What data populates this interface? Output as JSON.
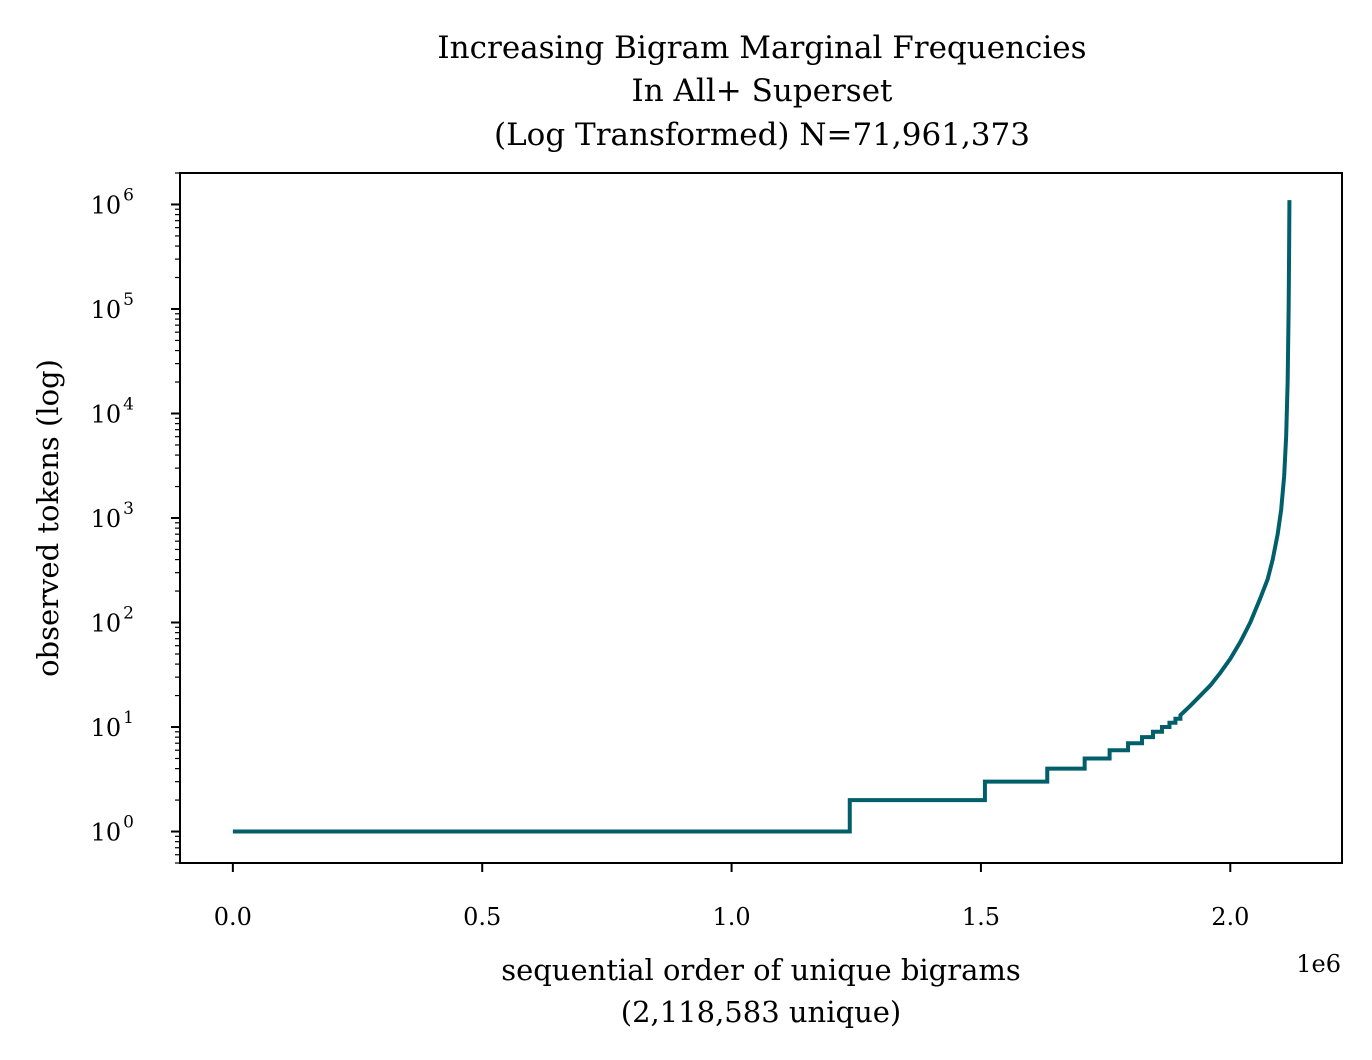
{
  "chart_data": {
    "type": "line",
    "title": [
      "Increasing Bigram Marginal Frequencies",
      "In All+ Superset",
      "(Log Transformed) N=71,961,373"
    ],
    "xlabel": [
      "sequential order of unique bigrams",
      "(2,118,583 unique)"
    ],
    "ylabel": "observed tokens (log)",
    "x_offset_label": "1e6",
    "x_scale": "linear",
    "y_scale": "log",
    "xlim": [
      -106000,
      2224000
    ],
    "ylim": [
      0.5,
      2000000
    ],
    "x_ticks": [
      {
        "value": 0,
        "label": "0.0"
      },
      {
        "value": 500000,
        "label": "0.5"
      },
      {
        "value": 1000000,
        "label": "1.0"
      },
      {
        "value": 1500000,
        "label": "1.5"
      },
      {
        "value": 2000000,
        "label": "2.0"
      }
    ],
    "y_ticks": [
      {
        "value": 1,
        "base": "10",
        "exp": "0"
      },
      {
        "value": 10,
        "base": "10",
        "exp": "1"
      },
      {
        "value": 100,
        "base": "10",
        "exp": "2"
      },
      {
        "value": 1000,
        "base": "10",
        "exp": "3"
      },
      {
        "value": 10000,
        "base": "10",
        "exp": "4"
      },
      {
        "value": 100000,
        "base": "10",
        "exp": "5"
      },
      {
        "value": 1000000,
        "base": "10",
        "exp": "6"
      }
    ],
    "grid": false,
    "legend": "none",
    "series": [
      {
        "color": "#005f6a",
        "step_points": [
          [
            0,
            1
          ],
          [
            1237000,
            1
          ],
          [
            1237000,
            2
          ],
          [
            1508000,
            2
          ],
          [
            1508000,
            3
          ],
          [
            1633000,
            3
          ],
          [
            1633000,
            4
          ],
          [
            1708000,
            4
          ],
          [
            1708000,
            5
          ],
          [
            1758000,
            5
          ],
          [
            1758000,
            6
          ],
          [
            1795000,
            6
          ],
          [
            1795000,
            7
          ],
          [
            1823000,
            7
          ],
          [
            1823000,
            8
          ],
          [
            1845000,
            8
          ],
          [
            1845000,
            9
          ],
          [
            1863000,
            9
          ],
          [
            1863000,
            10
          ],
          [
            1878000,
            10
          ],
          [
            1878000,
            11
          ],
          [
            1890000,
            11
          ],
          [
            1890000,
            12
          ],
          [
            1900000,
            12
          ],
          [
            1900000,
            13
          ]
        ],
        "curve_points": [
          [
            1900000,
            13
          ],
          [
            1920000,
            16
          ],
          [
            1940000,
            20
          ],
          [
            1960000,
            25
          ],
          [
            1980000,
            33
          ],
          [
            2000000,
            45
          ],
          [
            2020000,
            65
          ],
          [
            2040000,
            100
          ],
          [
            2060000,
            170
          ],
          [
            2075000,
            260
          ],
          [
            2085000,
            400
          ],
          [
            2095000,
            700
          ],
          [
            2102000,
            1200
          ],
          [
            2108000,
            2500
          ],
          [
            2112000,
            6000
          ],
          [
            2115000,
            20000
          ],
          [
            2117000,
            100000
          ],
          [
            2118000,
            400000
          ],
          [
            2118583,
            1100000
          ]
        ]
      }
    ]
  }
}
